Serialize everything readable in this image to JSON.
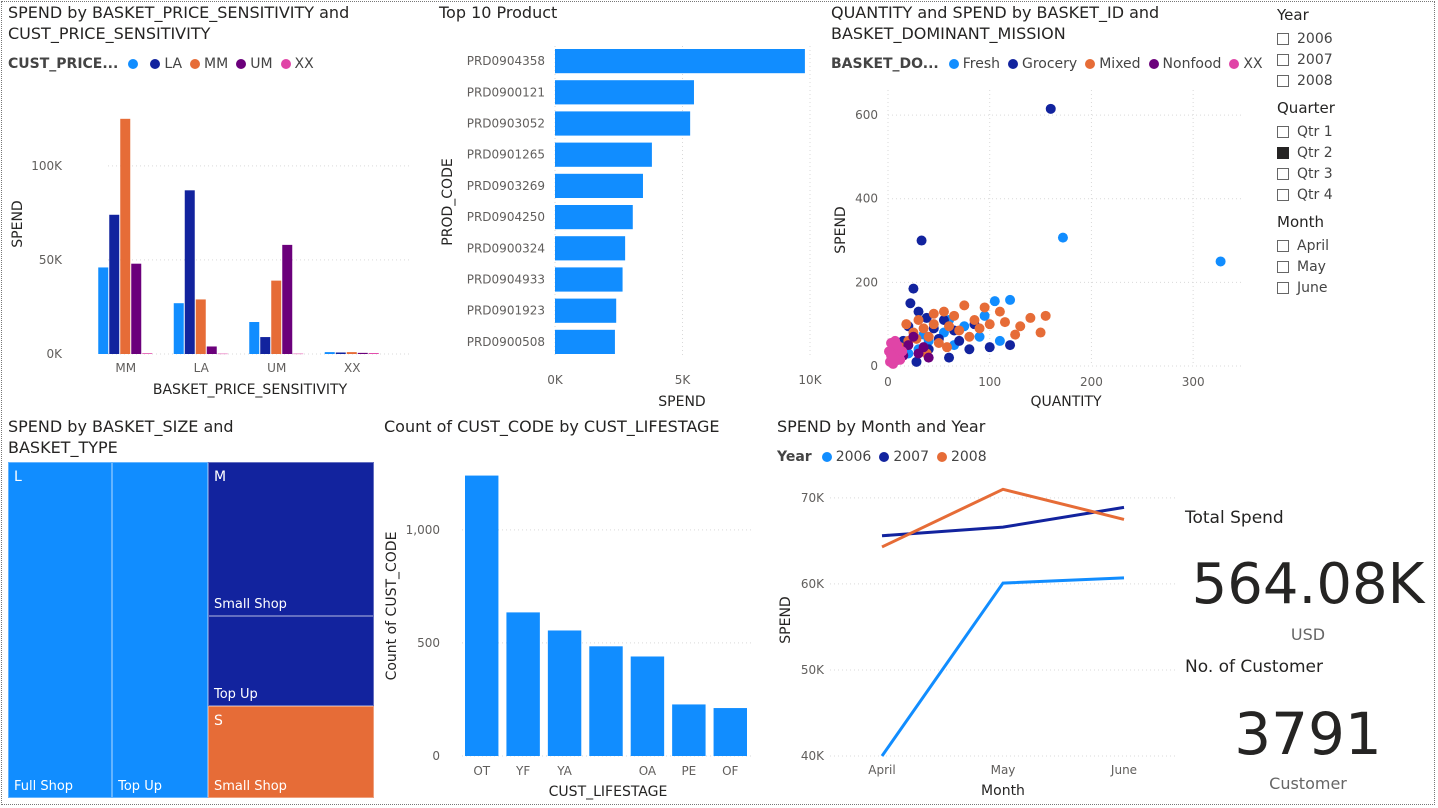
{
  "titles": {
    "sensitivity": "SPEND by BASKET_PRICE_SENSITIVITY and CUST_PRICE_SENSITIVITY",
    "top10": "Top 10 Product",
    "scatter": "QUANTITY and SPEND by BASKET_ID and BASKET_DOMINANT_MISSION",
    "treemap": "SPEND by BASKET_SIZE and BASKET_TYPE",
    "lifestage": "Count of CUST_CODE by CUST_LIFESTAGE",
    "line": "SPEND by Month and Year"
  },
  "slicers": {
    "year": {
      "title": "Year",
      "options": [
        {
          "label": "2006",
          "checked": false
        },
        {
          "label": "2007",
          "checked": false
        },
        {
          "label": "2008",
          "checked": false
        }
      ]
    },
    "quarter": {
      "title": "Quarter",
      "options": [
        {
          "label": "Qtr 1",
          "checked": false
        },
        {
          "label": "Qtr 2",
          "checked": true
        },
        {
          "label": "Qtr 3",
          "checked": false
        },
        {
          "label": "Qtr 4",
          "checked": false
        }
      ]
    },
    "month": {
      "title": "Month",
      "options": [
        {
          "label": "April",
          "checked": false
        },
        {
          "label": "May",
          "checked": false
        },
        {
          "label": "June",
          "checked": false
        }
      ]
    }
  },
  "cards": {
    "total_spend": {
      "title": "Total Spend",
      "value": "564.08K",
      "unit": "USD"
    },
    "customers": {
      "title": "No. of Customer",
      "value": "3791",
      "unit": "Customer"
    }
  },
  "chart_data": [
    {
      "id": "sensitivity",
      "type": "bar",
      "legend_title": "CUST_PRICE...",
      "categories": [
        "MM",
        "LA",
        "UM",
        "XX"
      ],
      "series": [
        {
          "name": "",
          "color": "#118DFF",
          "values": [
            46000,
            27000,
            17000,
            1000
          ]
        },
        {
          "name": "LA",
          "color": "#12239E",
          "values": [
            74000,
            87000,
            9000,
            800
          ]
        },
        {
          "name": "MM",
          "color": "#E66C37",
          "values": [
            125000,
            29000,
            39000,
            1000
          ]
        },
        {
          "name": "UM",
          "color": "#6B007B",
          "values": [
            48000,
            4000,
            58000,
            600
          ]
        },
        {
          "name": "XX",
          "color": "#E044A7",
          "values": [
            400,
            200,
            200,
            500
          ]
        }
      ],
      "xlabel": "BASKET_PRICE_SENSITIVITY",
      "ylabel": "SPEND",
      "ylim": [
        0,
        135000
      ],
      "yticks": [
        {
          "v": 0,
          "label": "0K"
        },
        {
          "v": 50000,
          "label": "50K"
        },
        {
          "v": 100000,
          "label": "100K"
        }
      ],
      "legend_position": "top-left",
      "grid": true
    },
    {
      "id": "top10",
      "type": "bar",
      "orientation": "horizontal",
      "categories": [
        "PRD0904358",
        "PRD0900121",
        "PRD0903052",
        "PRD0901265",
        "PRD0903269",
        "PRD0904250",
        "PRD0900324",
        "PRD0904933",
        "PRD0901923",
        "PRD0900508"
      ],
      "values": [
        9800,
        5450,
        5300,
        3800,
        3450,
        3050,
        2750,
        2650,
        2400,
        2350
      ],
      "color": "#118DFF",
      "xlabel": "SPEND",
      "ylabel": "PROD_CODE",
      "xlim": [
        0,
        10000
      ],
      "xticks": [
        {
          "v": 0,
          "label": "0K"
        },
        {
          "v": 5000,
          "label": "5K"
        },
        {
          "v": 10000,
          "label": "10K"
        }
      ],
      "grid": true
    },
    {
      "id": "scatter",
      "type": "scatter",
      "legend_title": "BASKET_DO...",
      "series": [
        {
          "name": "Fresh",
          "color": "#118DFF",
          "points": [
            [
              172,
              307
            ],
            [
              327,
              250
            ],
            [
              105,
              155
            ],
            [
              120,
              158
            ],
            [
              60,
              110
            ],
            [
              75,
              95
            ],
            [
              90,
              70
            ],
            [
              40,
              60
            ],
            [
              30,
              40
            ],
            [
              110,
              60
            ],
            [
              95,
              120
            ],
            [
              55,
              80
            ],
            [
              20,
              30
            ],
            [
              35,
              75
            ],
            [
              65,
              50
            ]
          ]
        },
        {
          "name": "Grocery",
          "color": "#12239E",
          "points": [
            [
              160,
              615
            ],
            [
              33,
              300
            ],
            [
              25,
              185
            ],
            [
              20,
              95
            ],
            [
              30,
              130
            ],
            [
              45,
              90
            ],
            [
              55,
              110
            ],
            [
              70,
              60
            ],
            [
              85,
              100
            ],
            [
              100,
              45
            ],
            [
              40,
              40
            ],
            [
              60,
              20
            ],
            [
              15,
              60
            ],
            [
              28,
              10
            ],
            [
              120,
              50
            ],
            [
              80,
              40
            ],
            [
              50,
              65
            ],
            [
              38,
              115
            ],
            [
              22,
              150
            ],
            [
              65,
              85
            ]
          ]
        },
        {
          "name": "Mixed",
          "color": "#E66C37",
          "points": [
            [
              155,
              120
            ],
            [
              150,
              80
            ],
            [
              130,
              95
            ],
            [
              110,
              130
            ],
            [
              95,
              140
            ],
            [
              85,
              110
            ],
            [
              75,
              145
            ],
            [
              65,
              120
            ],
            [
              55,
              130
            ],
            [
              45,
              100
            ],
            [
              35,
              90
            ],
            [
              25,
              80
            ],
            [
              30,
              110
            ],
            [
              40,
              70
            ],
            [
              50,
              55
            ],
            [
              60,
              95
            ],
            [
              70,
              85
            ],
            [
              80,
              70
            ],
            [
              90,
              90
            ],
            [
              100,
              100
            ],
            [
              115,
              105
            ],
            [
              125,
              75
            ],
            [
              140,
              115
            ],
            [
              45,
              125
            ],
            [
              20,
              60
            ],
            [
              12,
              45
            ],
            [
              18,
              100
            ],
            [
              28,
              65
            ],
            [
              38,
              30
            ],
            [
              58,
              45
            ]
          ]
        },
        {
          "name": "Nonfood",
          "color": "#6B007B",
          "points": [
            [
              20,
              50
            ],
            [
              30,
              30
            ],
            [
              40,
              20
            ],
            [
              25,
              70
            ],
            [
              15,
              25
            ],
            [
              35,
              45
            ],
            [
              10,
              15
            ]
          ]
        },
        {
          "name": "XX",
          "color": "#E044A7",
          "points": [
            [
              2,
              10
            ],
            [
              4,
              30
            ],
            [
              6,
              45
            ],
            [
              8,
              20
            ],
            [
              3,
              55
            ],
            [
              10,
              40
            ],
            [
              12,
              15
            ],
            [
              5,
              5
            ],
            [
              7,
              60
            ],
            [
              1,
              35
            ],
            [
              9,
              50
            ],
            [
              11,
              25
            ],
            [
              14,
              35
            ],
            [
              6,
              15
            ],
            [
              3,
              25
            ]
          ]
        }
      ],
      "xlabel": "QUANTITY",
      "ylabel": "SPEND",
      "xlim": [
        0,
        350
      ],
      "ylim": [
        0,
        660
      ],
      "xticks": [
        {
          "v": 0,
          "label": "0"
        },
        {
          "v": 100,
          "label": "100"
        },
        {
          "v": 200,
          "label": "200"
        },
        {
          "v": 300,
          "label": "300"
        }
      ],
      "yticks": [
        {
          "v": 0,
          "label": "0"
        },
        {
          "v": 200,
          "label": "200"
        },
        {
          "v": 400,
          "label": "400"
        },
        {
          "v": 600,
          "label": "600"
        }
      ],
      "legend_position": "top-left",
      "grid": true
    },
    {
      "id": "treemap",
      "type": "treemap",
      "groups": [
        {
          "name": "L",
          "color": "#118DFF",
          "children": [
            {
              "name": "Full Shop",
              "value": 138
            },
            {
              "name": "Top Up",
              "value": 127
            }
          ]
        },
        {
          "name": "M",
          "color": "#12239E",
          "children": [
            {
              "name": "Small Shop",
              "value": 101
            },
            {
              "name": "Top Up",
              "value": 59
            }
          ]
        },
        {
          "name": "S",
          "color": "#E66C37",
          "children": [
            {
              "name": "Small Shop",
              "value": 60
            }
          ]
        }
      ]
    },
    {
      "id": "lifestage",
      "type": "bar",
      "categories": [
        "OT",
        "YF",
        "YA",
        "",
        "OA",
        "PE",
        "OF"
      ],
      "values": [
        1240,
        635,
        555,
        485,
        440,
        228,
        212
      ],
      "color": "#118DFF",
      "xlabel": "CUST_LIFESTAGE",
      "ylabel": "Count of CUST_CODE",
      "ylim": [
        0,
        1300
      ],
      "yticks": [
        {
          "v": 0,
          "label": "0"
        },
        {
          "v": 500,
          "label": "500"
        },
        {
          "v": 1000,
          "label": "1,000"
        }
      ],
      "grid": true
    },
    {
      "id": "line",
      "type": "line",
      "legend_title": "Year",
      "categories": [
        "April",
        "May",
        "June"
      ],
      "series": [
        {
          "name": "2006",
          "color": "#118DFF",
          "values": [
            40000,
            60100,
            60700
          ]
        },
        {
          "name": "2007",
          "color": "#12239E",
          "values": [
            65600,
            66600,
            68900
          ]
        },
        {
          "name": "2008",
          "color": "#E66C37",
          "values": [
            64300,
            71000,
            67500
          ]
        }
      ],
      "xlabel": "Month",
      "ylabel": "SPEND",
      "ylim": [
        40000,
        71500
      ],
      "yticks": [
        {
          "v": 40000,
          "label": "40K"
        },
        {
          "v": 50000,
          "label": "50K"
        },
        {
          "v": 60000,
          "label": "60K"
        },
        {
          "v": 70000,
          "label": "70K"
        }
      ],
      "legend_position": "top-left",
      "grid": true
    }
  ]
}
